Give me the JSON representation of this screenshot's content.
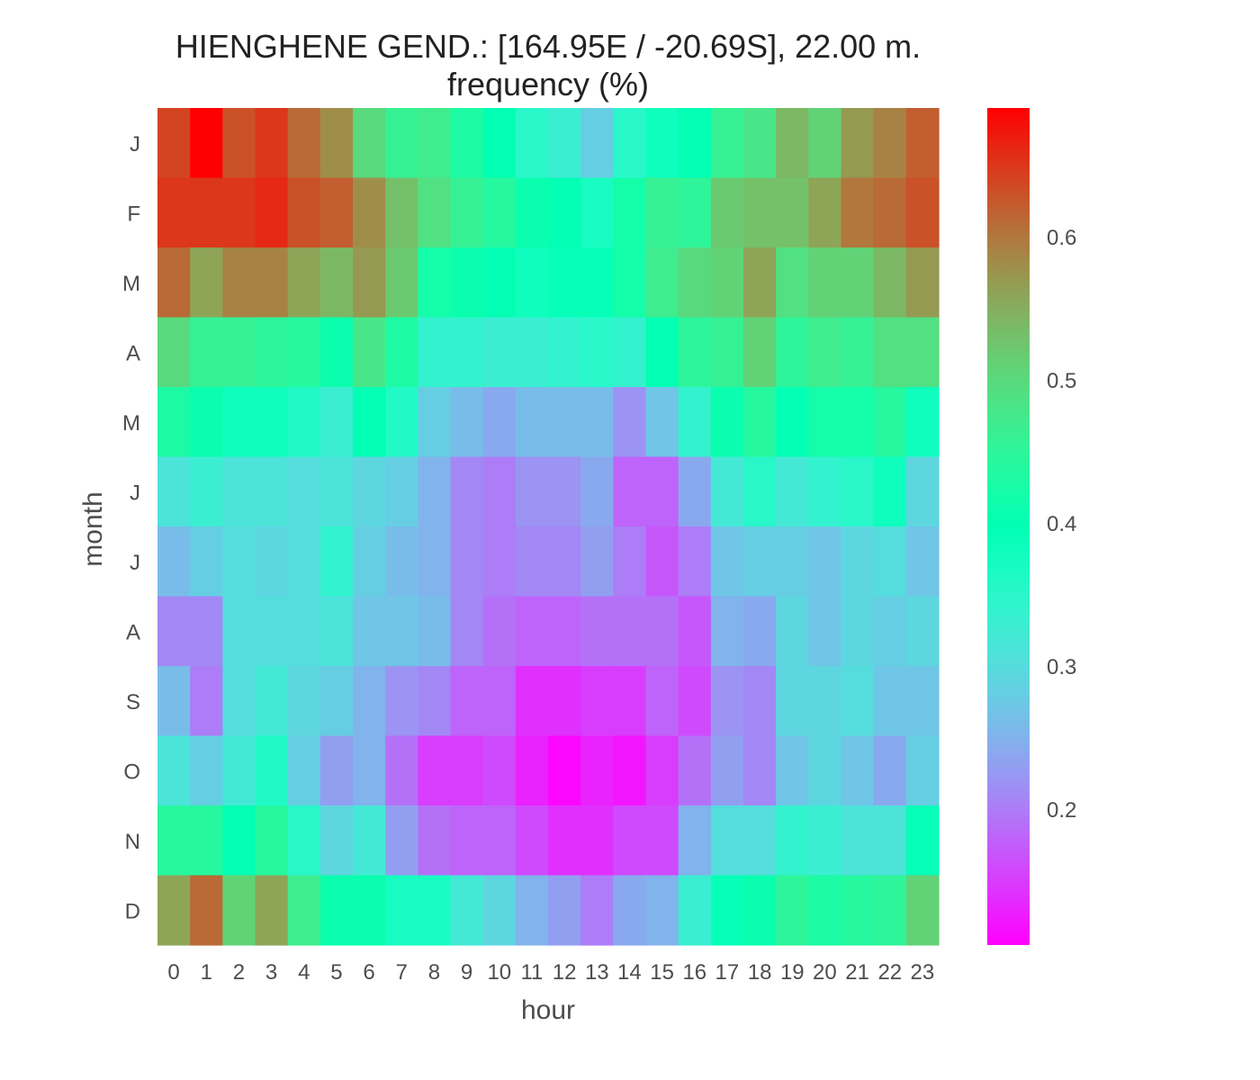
{
  "chart_data": {
    "type": "heatmap",
    "title": "HIENGHENE GEND.: [164.95E / -20.69S], 22.00 m.",
    "subtitle": "frequency (%)",
    "xlabel": "hour",
    "ylabel": "month",
    "x_categories": [
      "0",
      "1",
      "2",
      "3",
      "4",
      "5",
      "6",
      "7",
      "8",
      "9",
      "10",
      "11",
      "12",
      "13",
      "14",
      "15",
      "16",
      "17",
      "18",
      "19",
      "20",
      "21",
      "22",
      "23"
    ],
    "y_categories": [
      "J",
      "F",
      "M",
      "A",
      "M",
      "J",
      "J",
      "A",
      "S",
      "O",
      "N",
      "D"
    ],
    "colorscale": "rainbow",
    "vmin": 0.105,
    "vmax": 0.69,
    "colorbar_ticks": [
      0.2,
      0.3,
      0.4,
      0.5,
      0.6
    ],
    "colorbar_tick_labels": [
      "0.2",
      "0.3",
      "0.4",
      "0.5",
      "0.6"
    ],
    "values": [
      [
        0.64,
        0.69,
        0.63,
        0.65,
        0.61,
        0.58,
        0.5,
        0.46,
        0.47,
        0.43,
        0.4,
        0.35,
        0.33,
        0.28,
        0.35,
        0.38,
        0.4,
        0.46,
        0.48,
        0.54,
        0.51,
        0.57,
        0.59,
        0.62
      ],
      [
        0.65,
        0.65,
        0.65,
        0.66,
        0.63,
        0.62,
        0.58,
        0.53,
        0.49,
        0.46,
        0.44,
        0.41,
        0.4,
        0.37,
        0.42,
        0.46,
        0.45,
        0.52,
        0.53,
        0.53,
        0.56,
        0.6,
        0.61,
        0.63
      ],
      [
        0.61,
        0.56,
        0.59,
        0.59,
        0.56,
        0.54,
        0.57,
        0.52,
        0.42,
        0.41,
        0.4,
        0.38,
        0.39,
        0.39,
        0.42,
        0.47,
        0.5,
        0.51,
        0.56,
        0.49,
        0.51,
        0.51,
        0.54,
        0.57
      ],
      [
        0.5,
        0.46,
        0.46,
        0.45,
        0.44,
        0.41,
        0.48,
        0.43,
        0.34,
        0.34,
        0.33,
        0.33,
        0.34,
        0.35,
        0.34,
        0.4,
        0.45,
        0.46,
        0.51,
        0.45,
        0.47,
        0.46,
        0.49,
        0.49
      ],
      [
        0.43,
        0.41,
        0.38,
        0.38,
        0.36,
        0.33,
        0.4,
        0.36,
        0.28,
        0.26,
        0.24,
        0.26,
        0.26,
        0.26,
        0.22,
        0.27,
        0.34,
        0.41,
        0.44,
        0.4,
        0.42,
        0.42,
        0.44,
        0.38
      ],
      [
        0.31,
        0.33,
        0.31,
        0.31,
        0.3,
        0.31,
        0.29,
        0.28,
        0.25,
        0.21,
        0.2,
        0.22,
        0.22,
        0.24,
        0.18,
        0.18,
        0.24,
        0.32,
        0.35,
        0.32,
        0.34,
        0.35,
        0.38,
        0.29
      ],
      [
        0.26,
        0.28,
        0.3,
        0.29,
        0.3,
        0.34,
        0.28,
        0.26,
        0.25,
        0.21,
        0.2,
        0.21,
        0.21,
        0.23,
        0.2,
        0.17,
        0.2,
        0.27,
        0.28,
        0.28,
        0.27,
        0.29,
        0.3,
        0.27
      ],
      [
        0.21,
        0.21,
        0.3,
        0.3,
        0.3,
        0.31,
        0.27,
        0.27,
        0.26,
        0.21,
        0.19,
        0.18,
        0.18,
        0.19,
        0.19,
        0.19,
        0.17,
        0.25,
        0.24,
        0.29,
        0.27,
        0.29,
        0.28,
        0.29
      ],
      [
        0.26,
        0.2,
        0.3,
        0.32,
        0.29,
        0.28,
        0.25,
        0.22,
        0.21,
        0.18,
        0.18,
        0.14,
        0.14,
        0.15,
        0.15,
        0.18,
        0.16,
        0.22,
        0.21,
        0.29,
        0.29,
        0.3,
        0.27,
        0.27
      ],
      [
        0.31,
        0.28,
        0.32,
        0.36,
        0.28,
        0.23,
        0.25,
        0.19,
        0.15,
        0.15,
        0.16,
        0.13,
        0.11,
        0.13,
        0.12,
        0.15,
        0.19,
        0.23,
        0.21,
        0.27,
        0.29,
        0.27,
        0.24,
        0.28
      ],
      [
        0.44,
        0.44,
        0.4,
        0.44,
        0.35,
        0.29,
        0.32,
        0.23,
        0.19,
        0.18,
        0.18,
        0.16,
        0.14,
        0.14,
        0.16,
        0.16,
        0.25,
        0.3,
        0.3,
        0.34,
        0.33,
        0.31,
        0.31,
        0.39
      ],
      [
        0.56,
        0.61,
        0.51,
        0.56,
        0.47,
        0.41,
        0.41,
        0.37,
        0.37,
        0.32,
        0.29,
        0.25,
        0.23,
        0.2,
        0.24,
        0.25,
        0.33,
        0.39,
        0.41,
        0.45,
        0.43,
        0.44,
        0.45,
        0.51
      ]
    ]
  }
}
